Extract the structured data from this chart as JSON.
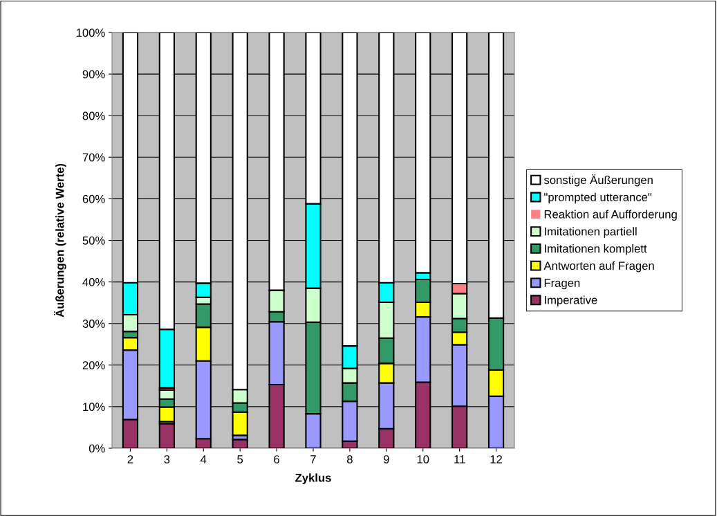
{
  "chart_data": {
    "type": "bar",
    "stacked": true,
    "xlabel": "Zyklus",
    "ylabel": "Äußerungen (relative Werte)",
    "categories": [
      "2",
      "3",
      "4",
      "5",
      "6",
      "7",
      "8",
      "9",
      "10",
      "11",
      "12"
    ],
    "series": [
      {
        "name": "Imperative",
        "color": "#993366",
        "values": [
          6.9,
          5.9,
          2.3,
          2.1,
          15.3,
          0,
          1.7,
          4.7,
          15.9,
          10.1,
          0
        ]
      },
      {
        "name": "Fragen",
        "color": "#9999ff",
        "values": [
          16.7,
          0.5,
          18.7,
          1.0,
          15.1,
          8.3,
          9.6,
          11.0,
          15.7,
          14.8,
          12.5
        ]
      },
      {
        "name": "Antworten auf Fragen",
        "color": "#ffff00",
        "values": [
          3.0,
          3.5,
          8.1,
          5.6,
          0,
          0,
          0,
          4.7,
          3.5,
          3.0,
          6.3
        ]
      },
      {
        "name": "Imitationen komplett",
        "color": "#339966",
        "values": [
          1.5,
          1.9,
          5.6,
          2.2,
          2.4,
          22.0,
          4.4,
          6.1,
          5.5,
          3.3,
          12.5
        ]
      },
      {
        "name": "Imitationen partiell",
        "color": "#ccffcc",
        "values": [
          4.0,
          2.2,
          1.6,
          3.2,
          5.2,
          8.2,
          3.5,
          8.6,
          0,
          6.0,
          0
        ]
      },
      {
        "name": "Reaktion auf Aufforderung",
        "color": "#ff8080",
        "values": [
          0,
          0.5,
          0,
          0,
          0,
          0,
          0,
          0,
          0,
          2.4,
          0
        ]
      },
      {
        "name": "\"prompted utterance\"",
        "color": "#00ffff",
        "values": [
          7.7,
          14.1,
          3.4,
          0,
          0,
          20.3,
          5.4,
          4.7,
          1.6,
          0,
          0
        ]
      },
      {
        "name": "sonstige Äußerungen",
        "color": "#ffffff",
        "values": [
          60.2,
          71.4,
          60.3,
          85.9,
          62.0,
          41.2,
          75.4,
          60.2,
          57.8,
          60.4,
          68.7
        ]
      }
    ],
    "ylim": [
      0,
      100
    ],
    "yticks": [
      {
        "value": 0,
        "label": "0%"
      },
      {
        "value": 10,
        "label": "10%"
      },
      {
        "value": 20,
        "label": "20%"
      },
      {
        "value": 30,
        "label": "30%"
      },
      {
        "value": 40,
        "label": "40%"
      },
      {
        "value": 50,
        "label": "50%"
      },
      {
        "value": 60,
        "label": "60%"
      },
      {
        "value": 70,
        "label": "70%"
      },
      {
        "value": 80,
        "label": "80%"
      },
      {
        "value": 90,
        "label": "90%"
      },
      {
        "value": 100,
        "label": "100%"
      }
    ],
    "grid": "y",
    "legend": "right"
  }
}
